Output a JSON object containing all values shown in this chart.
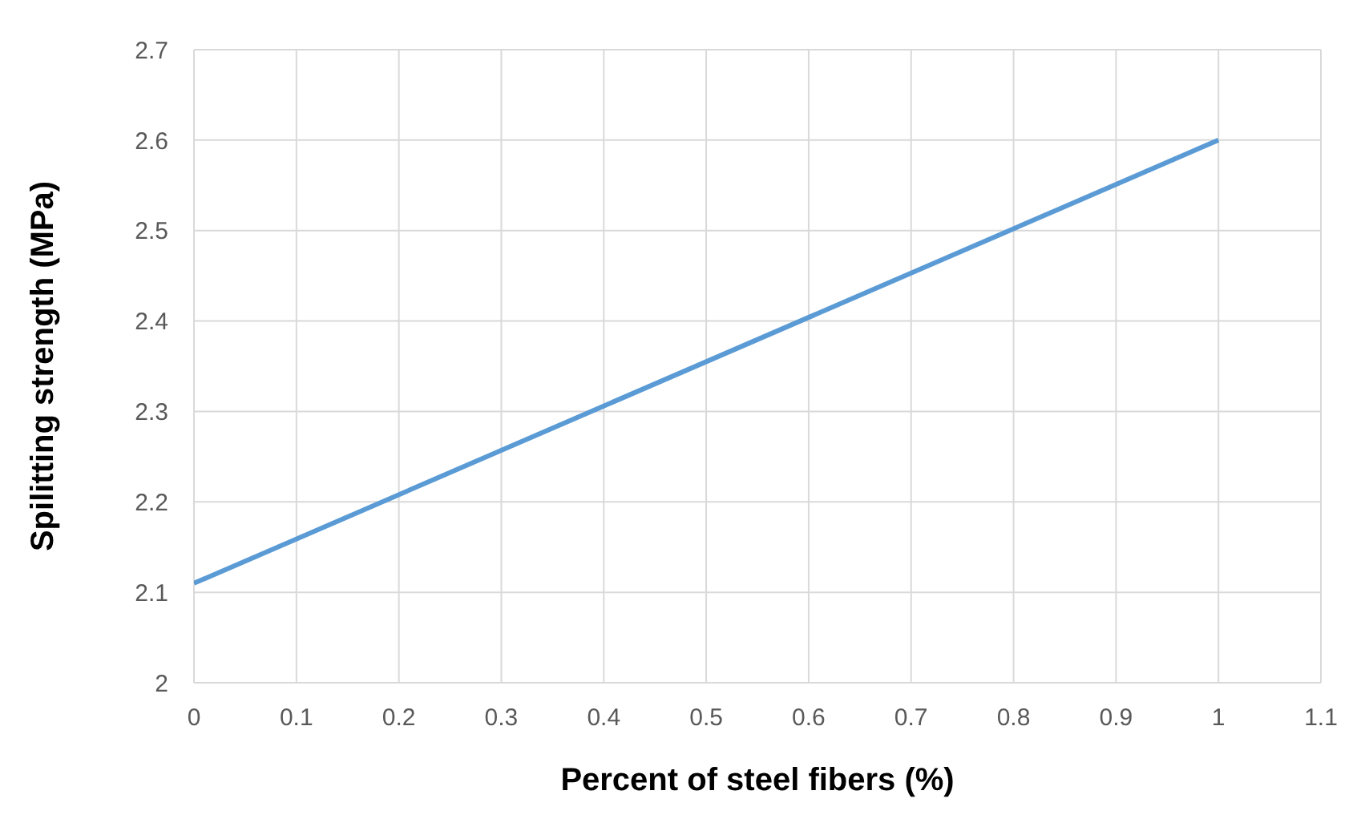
{
  "chart_data": {
    "type": "line",
    "xlabel": "Percent of steel fibers (%)",
    "ylabel": "Spilitting strength  (MPa)",
    "x": [
      0,
      1
    ],
    "series": [
      {
        "color": "#5b9bd5",
        "values": [
          2.11,
          2.6
        ]
      }
    ],
    "xlim": [
      0,
      1.1
    ],
    "xticks": [
      0,
      0.1,
      0.2,
      0.3,
      0.4,
      0.5,
      0.6,
      0.7,
      0.8,
      0.9,
      1,
      1.1
    ],
    "ylim": [
      2,
      2.7
    ],
    "yticks": [
      2,
      2.1,
      2.2,
      2.3,
      2.4,
      2.5,
      2.6,
      2.7
    ],
    "grid": true,
    "legend": false,
    "marker": "none",
    "line_style": "solid"
  }
}
